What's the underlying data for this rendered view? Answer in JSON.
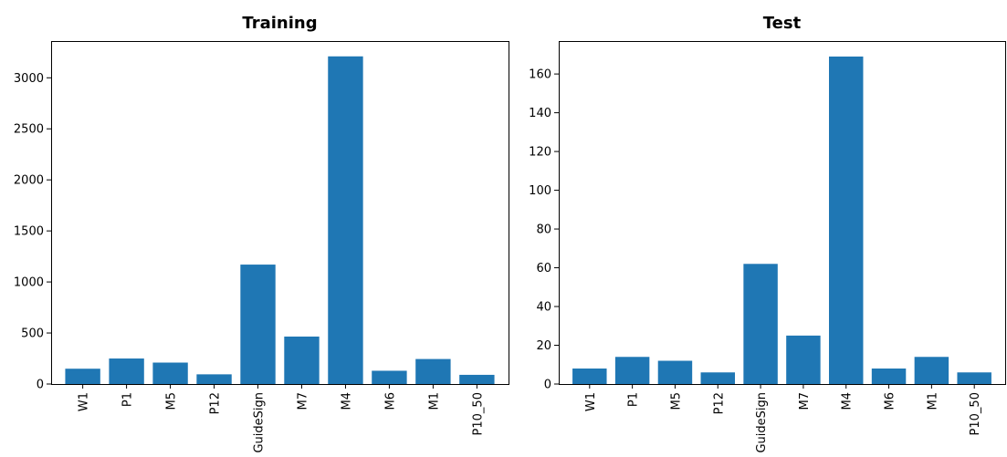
{
  "chart_data": [
    {
      "type": "bar",
      "title": "Training",
      "xlabel": "",
      "ylabel": "",
      "categories": [
        "W1",
        "P1",
        "M5",
        "P12",
        "GuideSign",
        "M7",
        "M4",
        "M6",
        "M1",
        "P10_50"
      ],
      "values": [
        150,
        250,
        210,
        95,
        1170,
        465,
        3210,
        130,
        245,
        90
      ],
      "ylim": [
        0,
        3360
      ],
      "yticks": [
        0,
        500,
        1000,
        1500,
        2000,
        2500,
        3000
      ],
      "color": "#1f77b4",
      "grid": false
    },
    {
      "type": "bar",
      "title": "Test",
      "xlabel": "",
      "ylabel": "",
      "categories": [
        "W1",
        "P1",
        "M5",
        "P12",
        "GuideSign",
        "M7",
        "M4",
        "M6",
        "M1",
        "P10_50"
      ],
      "values": [
        8,
        14,
        12,
        6,
        62,
        25,
        169,
        8,
        14,
        6
      ],
      "ylim": [
        0,
        177
      ],
      "yticks": [
        0,
        20,
        40,
        60,
        80,
        100,
        120,
        140,
        160
      ],
      "color": "#1f77b4",
      "grid": false
    }
  ]
}
